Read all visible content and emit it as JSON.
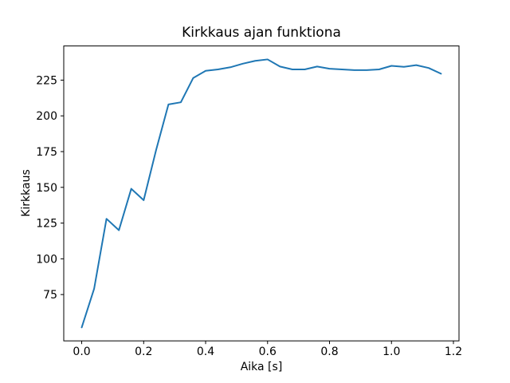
{
  "figure": {
    "background_color": "#ffffff",
    "text_color": "#000000"
  },
  "chart_data": {
    "type": "line",
    "title": "Kirkkaus ajan funktiona",
    "xlabel": "Aika [s]",
    "ylabel": "Kirkkaus",
    "grid": false,
    "legend_position": "none",
    "series_name": "kirkkaus",
    "series_color": "#1f77b4",
    "xlim": [
      -0.058,
      1.218
    ],
    "ylim": [
      42.6,
      248.9
    ],
    "xticks": {
      "values": [
        0.0,
        0.2,
        0.4,
        0.6,
        0.8,
        1.0,
        1.2
      ],
      "labels": [
        "0.0",
        "0.2",
        "0.4",
        "0.6",
        "0.8",
        "1.0",
        "1.2"
      ]
    },
    "yticks": {
      "values": [
        75,
        100,
        125,
        150,
        175,
        200,
        225
      ],
      "labels": [
        "75",
        "100",
        "125",
        "150",
        "175",
        "200",
        "225"
      ]
    },
    "x": [
      0.0,
      0.04,
      0.08,
      0.12,
      0.16,
      0.2,
      0.24,
      0.28,
      0.32,
      0.36,
      0.4,
      0.44,
      0.48,
      0.52,
      0.56,
      0.6,
      0.64,
      0.68,
      0.72,
      0.76,
      0.8,
      0.84,
      0.88,
      0.92,
      0.96,
      1.0,
      1.04,
      1.08,
      1.12,
      1.16
    ],
    "y": [
      52,
      79,
      128,
      120,
      149,
      141,
      176,
      208,
      209.5,
      226.5,
      231.5,
      232.5,
      234,
      236.5,
      238.5,
      239.5,
      234.5,
      232.5,
      232.5,
      234.5,
      233,
      232.5,
      232,
      232,
      232.5,
      235,
      234.3,
      235.5,
      233.5,
      229.5
    ]
  }
}
